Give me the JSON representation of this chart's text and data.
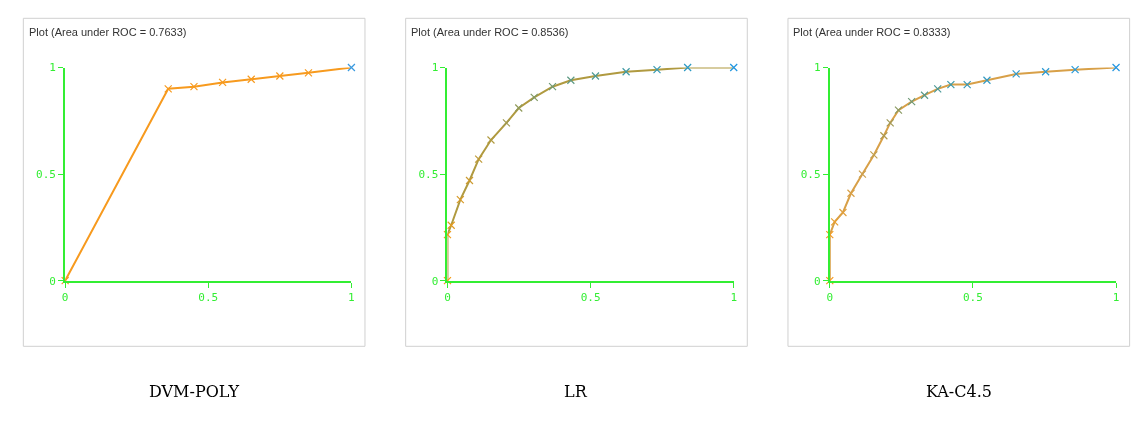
{
  "chart_data": [
    {
      "type": "line",
      "title": "Plot (Area under ROC = 0.7633)",
      "annotations": [
        "DVM-POLY"
      ],
      "x": [
        0,
        0.36,
        0.45,
        0.55,
        0.65,
        0.75,
        0.85,
        1
      ],
      "xlim": [
        0,
        1
      ],
      "ylim": [
        0,
        1
      ],
      "xticks": [
        0,
        0.5,
        1
      ],
      "yticks": [
        0,
        0.5,
        1
      ],
      "marker": "cross",
      "line_style": "solid",
      "series": [
        {
          "color": "#f79a1e",
          "values": [
            0,
            0.9,
            0.91,
            0.93,
            0.945,
            0.96,
            0.975,
            1
          ],
          "colors": [
            "#f79a1e",
            "#f79a1e",
            "#f79a1e",
            "#f79a1e",
            "#f79a1e",
            "#f79a1e",
            "#f79a1e",
            "#3a9ae0"
          ]
        }
      ]
    },
    {
      "type": "line",
      "title": "Plot (Area under ROC = 0.8536)",
      "annotations": [
        "LR"
      ],
      "x": [
        0,
        0,
        0.013,
        0.045,
        0.077,
        0.109,
        0.152,
        0.206,
        0.249,
        0.303,
        0.367,
        0.431,
        0.517,
        0.624,
        0.732,
        0.839,
        1
      ],
      "xlim": [
        0,
        1
      ],
      "ylim": [
        0,
        1
      ],
      "xticks": [
        0,
        0.5,
        1
      ],
      "yticks": [
        0,
        0.5,
        1
      ],
      "marker": "cross",
      "line_style": "solid",
      "series": [
        {
          "color": "#b09a40",
          "values": [
            0,
            0.216,
            0.26,
            0.38,
            0.47,
            0.57,
            0.66,
            0.74,
            0.81,
            0.86,
            0.91,
            0.94,
            0.96,
            0.98,
            0.99,
            1,
            1
          ],
          "colors": [
            "#f89a10",
            "#f09a18",
            "#e29a20",
            "#d89a28",
            "#cc9a30",
            "#bf9a38",
            "#b09a40",
            "#a09a50",
            "#909a5a",
            "#809a66",
            "#6e9a74",
            "#5e9a84",
            "#4e9a94",
            "#409aa4",
            "#369ab4",
            "#2c9ac4",
            "#2096e0"
          ]
        }
      ]
    },
    {
      "type": "line",
      "title": "Plot (Area under ROC = 0.8333)",
      "annotations": [
        "KA-C4.5"
      ],
      "x": [
        0,
        0,
        0.017,
        0.046,
        0.074,
        0.114,
        0.154,
        0.189,
        0.211,
        0.24,
        0.286,
        0.331,
        0.377,
        0.423,
        0.48,
        0.549,
        0.651,
        0.754,
        0.857,
        1
      ],
      "xlim": [
        0,
        1
      ],
      "ylim": [
        0,
        1
      ],
      "xticks": [
        0,
        0.5,
        1
      ],
      "yticks": [
        0,
        0.5,
        1
      ],
      "marker": "cross",
      "line_style": "solid",
      "series": [
        {
          "color": "#d8a048",
          "values": [
            0,
            0.216,
            0.276,
            0.32,
            0.41,
            0.5,
            0.59,
            0.68,
            0.74,
            0.8,
            0.84,
            0.87,
            0.9,
            0.92,
            0.92,
            0.94,
            0.97,
            0.98,
            0.99,
            1
          ],
          "colors": [
            "#f79a1e",
            "#f29a20",
            "#e8a030",
            "#e0a040",
            "#d8a048",
            "#cca050",
            "#c0a050",
            "#b09a50",
            "#a09a58",
            "#8a9a62",
            "#709a78",
            "#5a9a8a",
            "#4a9a9a",
            "#3e9aaa",
            "#389ab8",
            "#349ac4",
            "#309acc",
            "#2c9ad4",
            "#289ada",
            "#2496e0"
          ]
        }
      ]
    }
  ]
}
